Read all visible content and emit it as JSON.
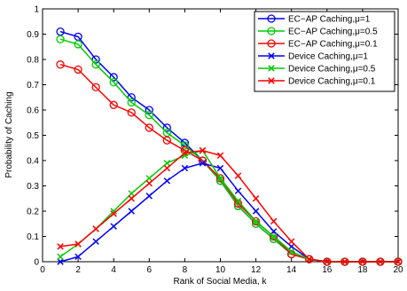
{
  "chart_data": {
    "type": "line",
    "xlabel": "Rank of Social Media, k",
    "ylabel": "Probability of Caching",
    "xlim": [
      0,
      20
    ],
    "ylim": [
      0,
      1
    ],
    "xticks": [
      "0",
      "2",
      "4",
      "6",
      "8",
      "10",
      "12",
      "14",
      "16",
      "18",
      "20"
    ],
    "yticks": [
      "0",
      "0.1",
      "0.2",
      "0.3",
      "0.4",
      "0.5",
      "0.6",
      "0.7",
      "0.8",
      "0.9",
      "1"
    ],
    "grid": false,
    "legend_position": "top-right",
    "x": [
      1,
      2,
      3,
      4,
      5,
      6,
      7,
      8,
      9,
      10,
      11,
      12,
      13,
      14,
      15,
      16,
      17,
      18,
      19,
      20
    ],
    "series": [
      {
        "name": "EC−AP Caching,μ=1",
        "color": "#0000ff",
        "marker": "circle",
        "values": [
          0.91,
          0.89,
          0.8,
          0.73,
          0.65,
          0.6,
          0.53,
          0.47,
          0.4,
          0.32,
          0.22,
          0.15,
          0.09,
          0.03,
          0.01,
          0.0,
          0.0,
          0.0,
          0.0,
          0.0
        ]
      },
      {
        "name": "EC−AP Caching,μ=0.5",
        "color": "#00cc00",
        "marker": "circle",
        "values": [
          0.88,
          0.86,
          0.78,
          0.71,
          0.63,
          0.58,
          0.51,
          0.46,
          0.4,
          0.32,
          0.22,
          0.15,
          0.09,
          0.03,
          0.01,
          0.0,
          0.0,
          0.0,
          0.0,
          0.0
        ]
      },
      {
        "name": "EC−AP Caching,μ=0.1",
        "color": "#ff0000",
        "marker": "circle",
        "values": [
          0.78,
          0.76,
          0.69,
          0.62,
          0.59,
          0.53,
          0.48,
          0.44,
          0.4,
          0.33,
          0.23,
          0.16,
          0.1,
          0.03,
          0.01,
          0.0,
          0.0,
          0.0,
          0.0,
          0.0
        ]
      },
      {
        "name": "Device Caching,μ=1",
        "color": "#0000ff",
        "marker": "x",
        "values": [
          0.0,
          0.02,
          0.08,
          0.14,
          0.2,
          0.26,
          0.32,
          0.37,
          0.39,
          0.37,
          0.28,
          0.2,
          0.12,
          0.06,
          0.01,
          0.0,
          0.0,
          0.0,
          0.0,
          0.0
        ]
      },
      {
        "name": "Device Caching,μ=0.5",
        "color": "#00cc00",
        "marker": "x",
        "values": [
          0.02,
          0.07,
          0.13,
          0.2,
          0.27,
          0.33,
          0.39,
          0.42,
          0.44,
          0.33,
          0.24,
          0.16,
          0.1,
          0.04,
          0.01,
          0.0,
          0.0,
          0.0,
          0.0,
          0.0
        ]
      },
      {
        "name": "Device Caching,μ=0.1",
        "color": "#ff0000",
        "marker": "x",
        "values": [
          0.06,
          0.07,
          0.13,
          0.19,
          0.25,
          0.31,
          0.37,
          0.43,
          0.44,
          0.42,
          0.34,
          0.25,
          0.16,
          0.08,
          0.01,
          0.0,
          0.0,
          0.0,
          0.0,
          0.0
        ]
      }
    ]
  }
}
